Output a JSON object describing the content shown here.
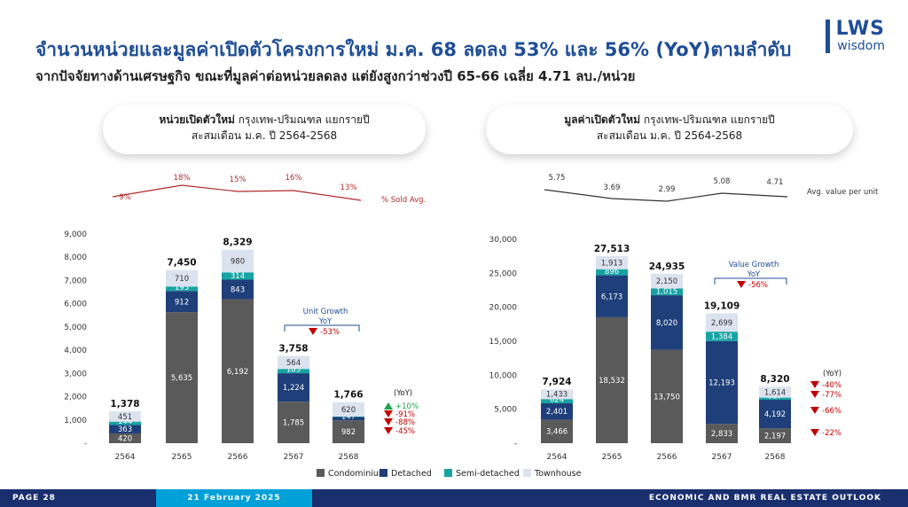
{
  "header": {
    "title": "จำนวนหน่วยและมูลค่าเปิดตัวโครงการใหม่ ม.ค. 68 ลดลง 53% และ 56% (YoY)ตามลำดับ",
    "subtitle": "จากปัจจัยทางด้านเศรษฐกิจ ขณะที่มูลค่าต่อหน่วยลดลง แต่ยังสูงกว่าช่วงปี 65-66 เฉลี่ย 4.71 ลบ./หน่วย"
  },
  "logo": {
    "main": "LWS",
    "sub": "wisdom"
  },
  "left_card": {
    "bold": "หน่วยเปิดตัวใหม่",
    "rest": " กรุงเทพ-ปริมณฑล แยกรายปี",
    "line2": "สะสมเดือน ม.ค. ปี 2564-2568"
  },
  "right_card": {
    "bold": "มูลค่าเปิดตัวใหม่",
    "rest": " กรุงเทพ-ปริมณฑล แยกรายปี",
    "line2": "สะสมเดือน ม.ค. ปี 2564-2568"
  },
  "colors": {
    "condominium": "#5a5a5a",
    "detached": "#1f3f7a",
    "semi": "#17a3a3",
    "townhouse": "#dbe3ef",
    "red": "#c00000",
    "green": "#1aa34a"
  },
  "legend": [
    "Condominium",
    "Detached",
    "Semi-detached",
    "Townhouse"
  ],
  "footer": {
    "page": "PAGE 28",
    "date": "21 February 2025",
    "right": "ECONOMIC AND BMR REAL ESTATE OUTLOOK"
  },
  "chart_data": [
    {
      "type": "bar",
      "stacked": true,
      "categories": [
        "2564",
        "2565",
        "2566",
        "2567",
        "2568"
      ],
      "series": [
        {
          "name": "Condominium",
          "values": [
            420,
            5635,
            6192,
            1785,
            982
          ]
        },
        {
          "name": "Detached",
          "values": [
            363,
            912,
            843,
            1224,
            147
          ]
        },
        {
          "name": "Semi-detached",
          "values": [
            144,
            193,
            314,
            185,
            17
          ]
        },
        {
          "name": "Townhouse",
          "values": [
            451,
            710,
            980,
            564,
            620
          ]
        }
      ],
      "totals": [
        "1,378",
        "7,450",
        "8,329",
        "3,758",
        "1,766"
      ],
      "ylim": [
        0,
        9000
      ],
      "yticks": [
        "-",
        "1,000",
        "2,000",
        "3,000",
        "4,000",
        "5,000",
        "6,000",
        "7,000",
        "8,000",
        "9,000"
      ],
      "line": {
        "label": "% Sold Avg.",
        "values": [
          9,
          18,
          15,
          16,
          13
        ],
        "labels": [
          "9%",
          "18%",
          "15%",
          "16%",
          "13%"
        ]
      },
      "growth": {
        "label": "Unit Growth",
        "sub": "YoY",
        "value": "-53%"
      },
      "yoy": {
        "header": "(YoY)",
        "items": [
          {
            "dir": "up",
            "text": "+10%"
          },
          {
            "dir": "down",
            "text": "-91%"
          },
          {
            "dir": "down",
            "text": "-88%"
          },
          {
            "dir": "down",
            "text": "-45%"
          }
        ]
      }
    },
    {
      "type": "bar",
      "stacked": true,
      "categories": [
        "2564",
        "2565",
        "2566",
        "2567",
        "2568"
      ],
      "series": [
        {
          "name": "Condominium",
          "values": [
            3466,
            18532,
            13750,
            2833,
            2197
          ]
        },
        {
          "name": "Detached",
          "values": [
            2401,
            6173,
            8020,
            12193,
            4192
          ]
        },
        {
          "name": "Semi-detached",
          "values": [
            624,
            896,
            1015,
            1384,
            317
          ]
        },
        {
          "name": "Townhouse",
          "values": [
            1433,
            1913,
            2150,
            2699,
            1614
          ]
        }
      ],
      "totals": [
        "7,924",
        "27,513",
        "24,935",
        "19,109",
        "8,320"
      ],
      "ylim": [
        0,
        30000
      ],
      "yticks": [
        "-",
        "5,000",
        "10,000",
        "15,000",
        "20,000",
        "25,000",
        "30,000"
      ],
      "line": {
        "label": "Avg. value per unit",
        "values": [
          5.75,
          3.69,
          2.99,
          5.08,
          4.71
        ],
        "labels": [
          "5.75",
          "3.69",
          "2.99",
          "5.08",
          "4.71"
        ]
      },
      "growth": {
        "label": "Value Growth",
        "sub": "YoY",
        "value": "-56%"
      },
      "yoy": {
        "header": "(YoY)",
        "items": [
          {
            "dir": "down",
            "text": "-40%"
          },
          {
            "dir": "down",
            "text": "-77%"
          },
          {
            "dir": "down",
            "text": "-66%"
          },
          {
            "dir": "down",
            "text": "-22%"
          }
        ]
      }
    }
  ]
}
